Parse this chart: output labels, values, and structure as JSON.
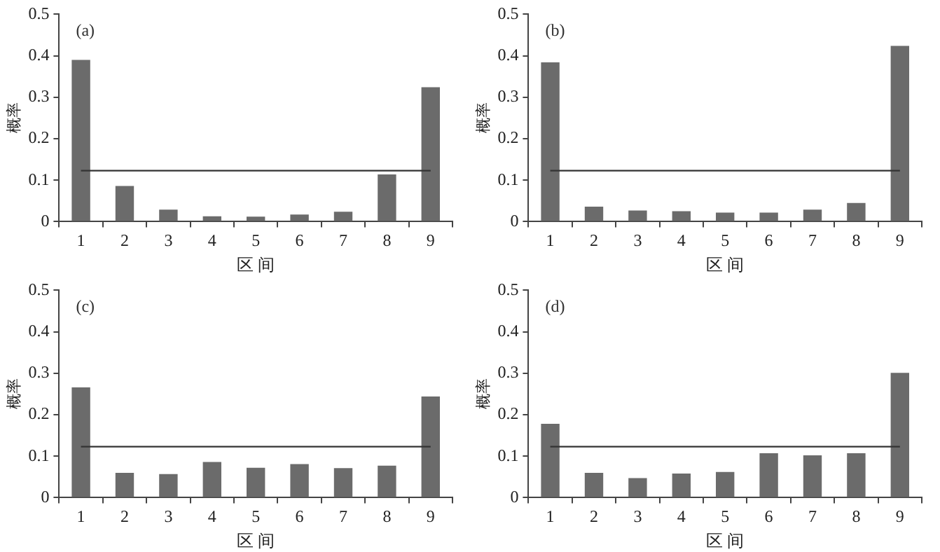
{
  "chart_data": [
    {
      "type": "bar",
      "annotations": [
        "(a)"
      ],
      "xlabel": "区 间",
      "ylabel": "概率",
      "categories": [
        "1",
        "2",
        "3",
        "4",
        "5",
        "6",
        "7",
        "8",
        "9"
      ],
      "values": [
        0.39,
        0.086,
        0.029,
        0.013,
        0.012,
        0.017,
        0.024,
        0.114,
        0.324
      ],
      "color": "#6b6b6b",
      "ylim": [
        0,
        0.5
      ],
      "yticks": [
        0,
        0.1,
        0.2,
        0.3,
        0.4,
        0.5
      ],
      "grid": false,
      "legend": false,
      "ref_lines": [
        {
          "axis": "y",
          "value": 0.123,
          "color": "#333333"
        }
      ]
    },
    {
      "type": "bar",
      "annotations": [
        "(b)"
      ],
      "xlabel": "区 间",
      "ylabel": "概率",
      "categories": [
        "1",
        "2",
        "3",
        "4",
        "5",
        "6",
        "7",
        "8",
        "9"
      ],
      "values": [
        0.384,
        0.036,
        0.027,
        0.025,
        0.022,
        0.022,
        0.029,
        0.045,
        0.424
      ],
      "color": "#6b6b6b",
      "ylim": [
        0,
        0.5
      ],
      "yticks": [
        0,
        0.1,
        0.2,
        0.3,
        0.4,
        0.5
      ],
      "grid": false,
      "legend": false,
      "ref_lines": [
        {
          "axis": "y",
          "value": 0.123,
          "color": "#333333"
        }
      ]
    },
    {
      "type": "bar",
      "annotations": [
        "(c)"
      ],
      "xlabel": "区 间",
      "ylabel": "概率",
      "categories": [
        "1",
        "2",
        "3",
        "4",
        "5",
        "6",
        "7",
        "8",
        "9"
      ],
      "values": [
        0.266,
        0.06,
        0.057,
        0.086,
        0.072,
        0.081,
        0.071,
        0.077,
        0.244
      ],
      "color": "#6b6b6b",
      "ylim": [
        0,
        0.5
      ],
      "yticks": [
        0,
        0.1,
        0.2,
        0.3,
        0.4,
        0.5
      ],
      "grid": false,
      "legend": false,
      "ref_lines": [
        {
          "axis": "y",
          "value": 0.123,
          "color": "#333333"
        }
      ]
    },
    {
      "type": "bar",
      "annotations": [
        "(d)"
      ],
      "xlabel": "区 间",
      "ylabel": "概率",
      "categories": [
        "1",
        "2",
        "3",
        "4",
        "5",
        "6",
        "7",
        "8",
        "9"
      ],
      "values": [
        0.178,
        0.06,
        0.047,
        0.058,
        0.062,
        0.107,
        0.102,
        0.107,
        0.301
      ],
      "color": "#6b6b6b",
      "ylim": [
        0,
        0.5
      ],
      "yticks": [
        0,
        0.1,
        0.2,
        0.3,
        0.4,
        0.5
      ],
      "grid": false,
      "legend": false,
      "ref_lines": [
        {
          "axis": "y",
          "value": 0.123,
          "color": "#333333"
        }
      ]
    }
  ]
}
